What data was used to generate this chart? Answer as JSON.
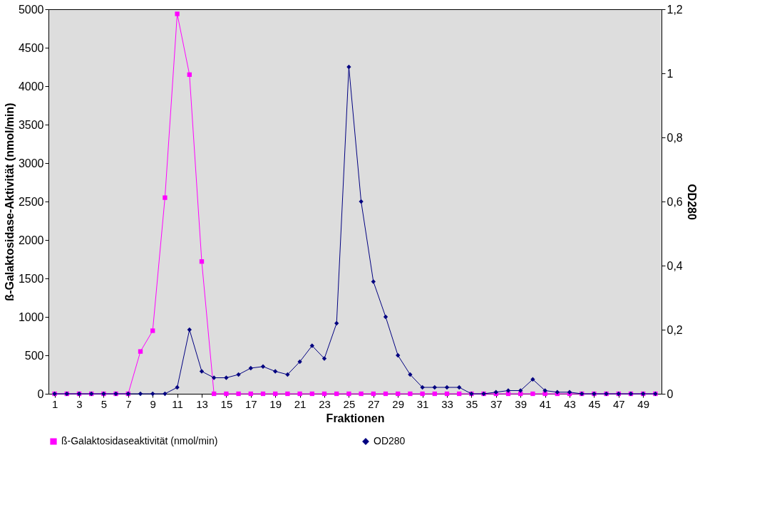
{
  "chart_data": {
    "type": "line",
    "xlabel": "Fraktionen",
    "ylabel": "ß-Galaktosidase-Aktivität (nmol/min)",
    "y2label": "OD280",
    "x": [
      1,
      2,
      3,
      4,
      5,
      6,
      7,
      8,
      9,
      10,
      11,
      12,
      13,
      14,
      15,
      16,
      17,
      18,
      19,
      20,
      21,
      22,
      23,
      24,
      25,
      26,
      27,
      28,
      29,
      30,
      31,
      32,
      33,
      34,
      35,
      36,
      37,
      38,
      39,
      40,
      41,
      42,
      43,
      44,
      45,
      46,
      47,
      48,
      49,
      50
    ],
    "xlim": [
      0.5,
      50.5
    ],
    "xticks": [
      1,
      3,
      5,
      7,
      9,
      11,
      13,
      15,
      17,
      19,
      21,
      23,
      25,
      27,
      29,
      31,
      33,
      35,
      37,
      39,
      41,
      43,
      45,
      47,
      49
    ],
    "series": [
      {
        "name": "ß-Galaktosidaseaktivität (nmol/min)",
        "color": "#ff00ff",
        "marker": "square",
        "values": [
          0,
          0,
          0,
          0,
          0,
          0,
          0,
          550,
          820,
          2550,
          4940,
          4150,
          1720,
          0,
          0,
          0,
          0,
          0,
          0,
          0,
          0,
          0,
          0,
          0,
          0,
          0,
          0,
          0,
          0,
          0,
          0,
          0,
          0,
          0,
          0,
          0,
          0,
          0,
          0,
          0,
          0,
          0,
          0,
          0,
          0,
          0,
          0,
          0,
          0,
          0
        ]
      },
      {
        "name": "OD280",
        "color": "#000080",
        "marker": "diamond",
        "axis": "y2",
        "values": [
          0,
          0,
          0,
          0,
          0,
          0,
          0,
          0,
          0,
          0,
          0.02,
          0.2,
          0.07,
          0.05,
          0.05,
          0.06,
          0.08,
          0.085,
          0.07,
          0.06,
          0.1,
          0.15,
          0.11,
          0.22,
          1.02,
          0.6,
          0.35,
          0.24,
          0.12,
          0.06,
          0.02,
          0.02,
          0.02,
          0.02,
          0,
          0,
          0.005,
          0.01,
          0.01,
          0.045,
          0.01,
          0.005,
          0.005,
          0,
          0,
          0,
          0,
          0,
          0,
          0
        ]
      }
    ],
    "ylim": [
      0,
      5000
    ],
    "yticks": [
      0,
      500,
      1000,
      1500,
      2000,
      2500,
      3000,
      3500,
      4000,
      4500,
      5000
    ],
    "y2lim": [
      0,
      1.2
    ],
    "y2ticks": [
      0,
      {
        "value": 0.2,
        "label": "0,2"
      },
      {
        "value": 0.4,
        "label": "0,4"
      },
      {
        "value": 0.6,
        "label": "0,6"
      },
      {
        "value": 0.8,
        "label": "0,8"
      },
      1,
      {
        "value": 1.2,
        "label": "1,2"
      }
    ],
    "grid": false,
    "legend": "bottom",
    "line_style": "solid"
  }
}
